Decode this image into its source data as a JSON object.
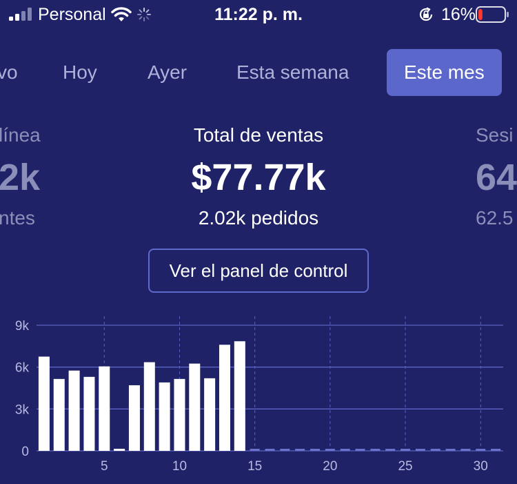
{
  "status_bar": {
    "carrier": "Personal",
    "time": "11:22 p. m.",
    "battery_percent": "16%",
    "battery_level": 0.16,
    "icons": [
      "signal-icon",
      "wifi-icon",
      "loading-spinner-icon",
      "orientation-lock-icon",
      "battery-icon"
    ]
  },
  "tabs": [
    {
      "label": "vo",
      "active": false
    },
    {
      "label": "Hoy",
      "active": false
    },
    {
      "label": "Ayer",
      "active": false
    },
    {
      "label": "Esta semana",
      "active": false
    },
    {
      "label": "Este mes",
      "active": true
    }
  ],
  "cards": {
    "left": {
      "title": "línea",
      "value": "2k",
      "subtitle": "ntes"
    },
    "center": {
      "title": "Total de ventas",
      "value": "$77.77k",
      "subtitle": "2.02k pedidos"
    },
    "right": {
      "title": "Sesi",
      "value": "64",
      "subtitle": "62.5"
    }
  },
  "dashboard_button": {
    "label": "Ver el panel de control"
  },
  "colors": {
    "background": "#1f2266",
    "accent": "#5c67cc",
    "bar": "#ffffff",
    "grid": "#5b62c4",
    "battery_low": "#ff3b30"
  },
  "chart_data": {
    "type": "bar",
    "x": [
      1,
      2,
      3,
      4,
      5,
      6,
      7,
      8,
      9,
      10,
      11,
      12,
      13,
      14,
      15,
      16,
      17,
      18,
      19,
      20,
      21,
      22,
      23,
      24,
      25,
      26,
      27,
      28,
      29,
      30,
      31
    ],
    "values": [
      6750,
      5150,
      5750,
      5300,
      6050,
      150,
      4700,
      6350,
      4900,
      5150,
      6250,
      5200,
      7600,
      7850,
      0,
      0,
      0,
      0,
      0,
      0,
      0,
      0,
      0,
      0,
      0,
      0,
      0,
      0,
      0,
      0,
      0
    ],
    "y_ticks": [
      "0",
      "3k",
      "6k",
      "9k"
    ],
    "x_ticks": [
      "5",
      "10",
      "15",
      "20",
      "25",
      "30"
    ],
    "ylim": [
      0,
      9000
    ],
    "grid": true,
    "legend": "none"
  }
}
